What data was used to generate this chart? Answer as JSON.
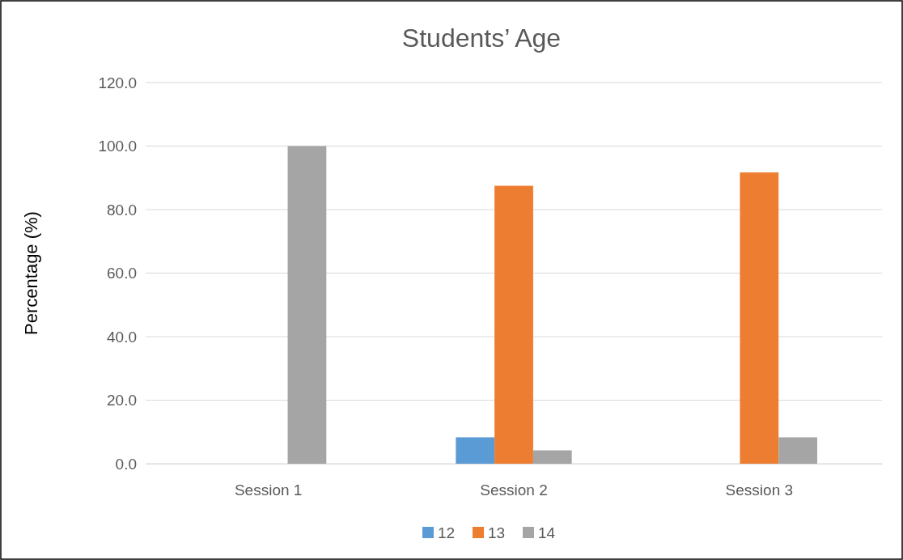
{
  "chart_data": {
    "type": "bar",
    "title": "Students’ Age",
    "ylabel": "Percentage (%)",
    "categories": [
      "Session 1",
      "Session 2",
      "Session 3"
    ],
    "series": [
      {
        "name": "12",
        "color": "#5b9bd5",
        "values": [
          0,
          8.3,
          0
        ]
      },
      {
        "name": "13",
        "color": "#ed7d31",
        "values": [
          0,
          87.5,
          91.7
        ]
      },
      {
        "name": "14",
        "color": "#a5a5a5",
        "values": [
          100,
          4.2,
          8.3
        ]
      }
    ],
    "ylim": [
      0,
      120
    ],
    "yticks": [
      {
        "value": 0,
        "label": "0.0"
      },
      {
        "value": 20,
        "label": "20.0"
      },
      {
        "value": 40,
        "label": "40.0"
      },
      {
        "value": 60,
        "label": "60.0"
      },
      {
        "value": 80,
        "label": "80.0"
      },
      {
        "value": 100,
        "label": "100.0"
      },
      {
        "value": 120,
        "label": "120.0"
      }
    ],
    "grid": "y",
    "legend": "bottom"
  }
}
